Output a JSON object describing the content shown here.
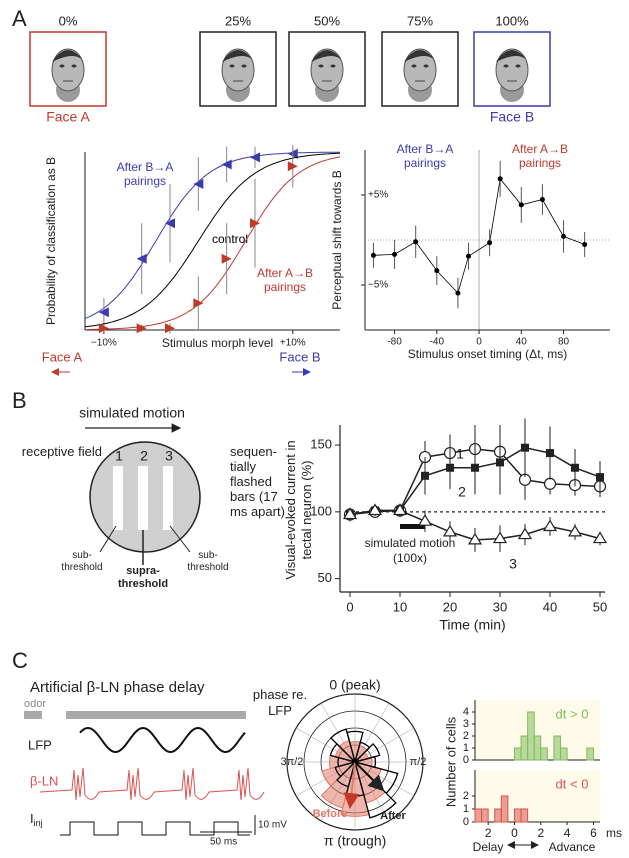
{
  "panel_a": {
    "label": "A",
    "morph_labels": [
      "0%",
      "25%",
      "50%",
      "75%",
      "100%"
    ],
    "face_a": "Face A",
    "face_b": "Face B",
    "psychometric": {
      "type": "line",
      "y_label": "Probability of classification as B",
      "x_label": "Stimulus morph level",
      "xlim": [
        -12,
        15
      ],
      "ylim": [
        0,
        1
      ],
      "xticks": [
        {
          "value": -10,
          "label": "−10%"
        },
        {
          "value": 10,
          "label": "+10%"
        }
      ],
      "face_a": "Face A",
      "face_b": "Face B",
      "series": [
        {
          "name": "After B→A pairings",
          "color": "#3b3bb0",
          "marker": "triangle-left",
          "midpoint": -4.5,
          "slope": 2.8,
          "x": [
            -10,
            -6,
            -3,
            0,
            3,
            6,
            10
          ],
          "values": [
            0.1,
            0.4,
            0.6,
            0.82,
            0.93,
            0.97,
            0.99
          ],
          "errors": [
            0.08,
            0.2,
            0.22,
            0.15,
            0.1,
            0.06,
            0.03
          ]
        },
        {
          "name": "control",
          "color": "#000000",
          "midpoint": 0,
          "slope": 3
        },
        {
          "name": "After A→B pairings",
          "color": "#c0392b",
          "marker": "triangle-right",
          "midpoint": 5,
          "slope": 2.8,
          "x": [
            -10,
            -6,
            -3,
            0,
            3,
            6,
            10
          ],
          "values": [
            0.01,
            0.01,
            0.01,
            0.15,
            0.4,
            0.6,
            0.92
          ],
          "errors": [
            0.02,
            0.02,
            0.03,
            0.15,
            0.2,
            0.25,
            0.12
          ]
        }
      ]
    },
    "timing": {
      "type": "line",
      "y_label": "Perceptual shift towards B",
      "x_label": "Stimulus onset timing (Δt, ms)",
      "xlim": [
        -108,
        124
      ],
      "ylim": [
        -10,
        10
      ],
      "xticks": [
        -80,
        -40,
        0,
        40,
        80
      ],
      "yticks": [
        {
          "value": -5,
          "label": "−5%"
        },
        {
          "value": 5,
          "label": "+5%"
        }
      ],
      "annotations": [
        {
          "text": "After B→A pairings",
          "color": "#3b3bb0"
        },
        {
          "text": "After A→B pairings",
          "color": "#c0392b"
        }
      ],
      "series": [
        {
          "color": "#000000",
          "x": [
            -100,
            -80,
            -60,
            -40,
            -20,
            -10,
            10,
            20,
            40,
            60,
            80,
            100
          ],
          "values": [
            -1.7,
            -1.6,
            -0.2,
            -3.4,
            -5.9,
            -1.8,
            -0.3,
            6.8,
            3.9,
            4.5,
            0.4,
            -0.5
          ],
          "errors": [
            1.4,
            1.6,
            1.8,
            1.6,
            1.7,
            1.5,
            1.5,
            2.0,
            2.0,
            1.7,
            1.8,
            1.4
          ]
        }
      ]
    }
  },
  "panel_b": {
    "label": "B",
    "motion_label": "simulated motion",
    "receptive_field": "receptive field",
    "bar_numbers": [
      "1",
      "2",
      "3"
    ],
    "flashed_bars": "sequen-tially flashed bars (17 ms apart)",
    "sub_left": "sub-threshold",
    "supra": "supra-threshold",
    "sub_right": "sub-threshold",
    "chart": {
      "type": "line",
      "y_label": "Visual-evoked current in tectal neuron (%)",
      "x_label": "Time (min)",
      "xlim": [
        -2,
        51
      ],
      "ylim": [
        40,
        165
      ],
      "xticks": [
        0,
        10,
        20,
        30,
        40,
        50
      ],
      "yticks": [
        50,
        100,
        150
      ],
      "reference_line": 100,
      "stimulus": {
        "label": "simulated motion (100x)",
        "start": 10,
        "end": 15
      },
      "x": [
        0,
        5,
        10,
        15,
        20,
        25,
        30,
        35,
        40,
        45,
        50
      ],
      "series": [
        {
          "name": "1",
          "marker": "circle",
          "values": [
            98,
            100,
            101,
            141,
            144,
            147,
            145,
            124,
            121,
            120,
            119
          ],
          "errors": [
            5,
            4,
            5,
            12,
            14,
            18,
            20,
            15,
            8,
            8,
            8
          ]
        },
        {
          "name": "2",
          "marker": "square",
          "values": [
            98,
            101,
            101,
            127,
            133,
            133,
            137,
            148,
            144,
            133,
            126
          ],
          "errors": [
            5,
            4,
            5,
            14,
            16,
            20,
            24,
            22,
            20,
            14,
            12
          ]
        },
        {
          "name": "3",
          "marker": "triangle",
          "values": [
            98,
            101,
            101,
            93,
            85,
            79,
            80,
            83,
            89,
            85,
            80
          ],
          "errors": [
            5,
            4,
            5,
            8,
            8,
            9,
            10,
            8,
            7,
            6,
            5
          ]
        }
      ]
    }
  },
  "panel_c": {
    "label": "C",
    "title": "Artificial β-LN phase delay",
    "odor": "odor",
    "lfp": "LFP",
    "beta_ln": "β-LN",
    "injection": {
      "main": "I",
      "sub": "inj"
    },
    "voltage_scale": "10 mV",
    "time_scale": "50 ms",
    "polar": {
      "type": "rose",
      "phase_label": "phase re. LFP",
      "peak": "0 (peak)",
      "right": "π/2",
      "left": "3π/2",
      "trough": "π (trough)",
      "rlim": [
        0,
        4
      ],
      "before": {
        "name": "Before",
        "color": "#e07a6a",
        "values": [
          1.2,
          1.0,
          0.8,
          1.0,
          1.6,
          2.5,
          3.2,
          2.8,
          2.0,
          1.5,
          1.2,
          1.3
        ]
      },
      "after": {
        "name": "After",
        "color": "#000000",
        "values": [
          1.8,
          1.2,
          1.5,
          1.2,
          2.6,
          3.4,
          2.0,
          1.5,
          1.2,
          1.0,
          1.5,
          2.0
        ]
      }
    },
    "histograms": {
      "type": "histogram",
      "y_label": "Number of cells",
      "xlim": [
        -3,
        6.5
      ],
      "xticks": [
        {
          "value": -2,
          "label": "2"
        },
        0,
        2,
        4,
        6
      ],
      "unit": "ms",
      "delay": "Delay",
      "advance": "Advance",
      "panels": [
        {
          "label": "dt > 0",
          "color": "#7dbd5a",
          "ylim": [
            0,
            5
          ],
          "yticks": [
            0,
            1,
            2,
            3,
            4
          ],
          "bins": [
            0,
            0.5,
            1,
            1.5,
            2,
            2.5,
            3,
            3.5,
            4,
            4.5,
            5,
            5.5,
            6
          ],
          "counts": [
            1,
            2,
            4,
            2,
            1,
            0,
            2,
            1,
            0,
            0,
            0,
            1
          ]
        },
        {
          "label": "dt < 0",
          "color": "#d9534f",
          "ylim": [
            0,
            4
          ],
          "yticks": [
            0,
            1,
            2
          ],
          "bins": [
            -3,
            -2.5,
            -2,
            -1.5,
            -1,
            -0.5,
            0,
            0.5,
            1
          ],
          "counts": [
            1,
            1,
            0,
            1,
            2,
            0,
            1,
            1
          ]
        }
      ]
    }
  }
}
